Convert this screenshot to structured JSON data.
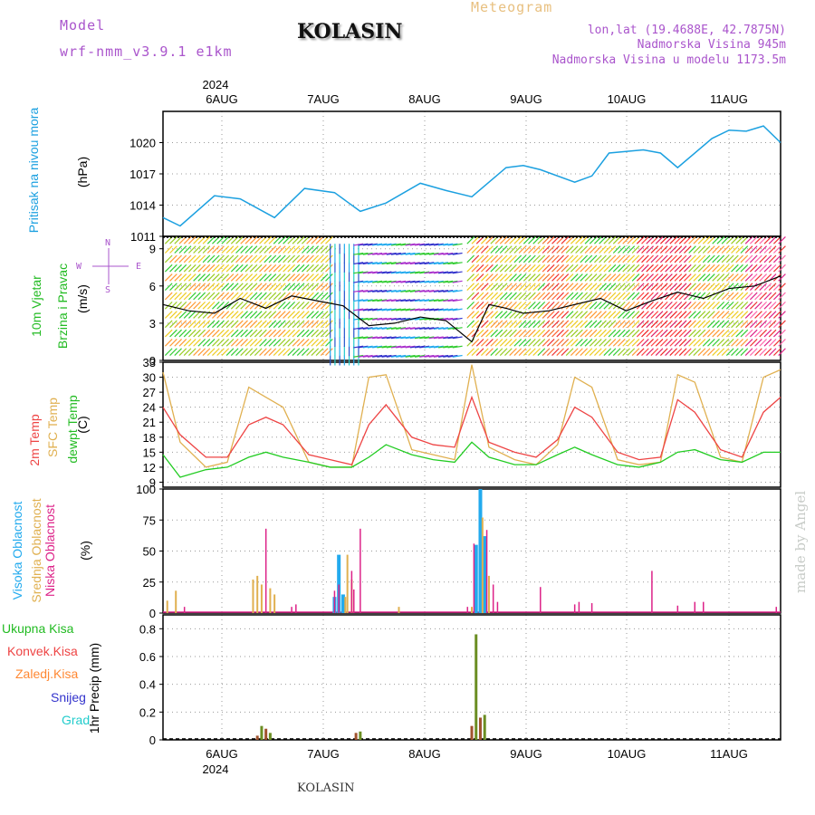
{
  "header": {
    "model_label": "Model",
    "model_name": "wrf-nmm_v3.9.1 e1km",
    "station": "KOLASIN",
    "meteogram": "Meteogram",
    "coords": "lon,lat (19.4688E, 42.7875N)",
    "altitude": "Nadmorska Visina 945m",
    "model_altitude": "Nadmorska Visina u modelu 1173.5m"
  },
  "colors": {
    "pressure": "#1ba0e0",
    "wind_label": "#22bb22",
    "temp": "#ee4444",
    "sfc_temp": "#e0b050",
    "dewpt": "#22cc22",
    "cloud_high": "#22aaee",
    "cloud_mid": "#e0b050",
    "cloud_low": "#dd2288",
    "precip": "#228822",
    "conv": "#ee4444",
    "frozen": "#ff8833",
    "snow": "#3333cc",
    "grad": "#22cccc",
    "model": "#aa55cc",
    "meteogram": "#e8c080"
  },
  "xaxis": {
    "year": "2024",
    "days": [
      "6AUG",
      "7AUG",
      "8AUG",
      "9AUG",
      "10AUG",
      "11AUG"
    ],
    "bottom_label": "KOLASIN",
    "watermark": "made by Angel"
  },
  "panels": {
    "pressure": {
      "label": "Pritisak na nivou mora",
      "unit": "(hPa)",
      "ticks": [
        "1020",
        "1017",
        "1014",
        "1011"
      ]
    },
    "wind": {
      "label1": "10m Vjetar",
      "label2": "Brzina i Pravac",
      "unit": "(m/s)",
      "ticks": [
        "9",
        "6",
        "3",
        "0"
      ],
      "compass_n": "N",
      "compass_w": "W",
      "compass_e": "E",
      "compass_s": "S"
    },
    "temp": {
      "label1": "2m Temp",
      "label2": "SFC Temp",
      "label3": "dewpt Temp",
      "unit": "(C)",
      "ticks": [
        "33",
        "30",
        "27",
        "24",
        "21",
        "18",
        "15",
        "12",
        "9"
      ]
    },
    "cloud": {
      "label1": "Visoka Oblacnost",
      "label2": "Srednja Oblacnost",
      "label3": "Niska Oblacnost",
      "unit": "(%)",
      "ticks": [
        "100",
        "75",
        "50",
        "25",
        "0"
      ]
    },
    "precip": {
      "unit": "1hr Precip (mm)",
      "ticks": [
        "0.8",
        "0.6",
        "0.4",
        "0.2",
        "0"
      ],
      "legend": [
        "Ukupna Kisa",
        "Konvek.Kisa",
        "Zaledj.Kisa",
        "Snijeg",
        "Grad"
      ]
    }
  },
  "chart_data": [
    {
      "type": "line",
      "title": "Pritisak na nivou mora",
      "ylabel": "(hPa)",
      "x_range": [
        0,
        144
      ],
      "ylim": [
        1011,
        1023
      ],
      "x": [
        0,
        4,
        12,
        18,
        26,
        33,
        40,
        46,
        52,
        60,
        66,
        72,
        80,
        84,
        88,
        96,
        100,
        104,
        112,
        116,
        120,
        128,
        132,
        136,
        140,
        144
      ],
      "values": [
        1012.8,
        1012.0,
        1014.9,
        1014.6,
        1012.8,
        1015.6,
        1015.2,
        1013.4,
        1014.2,
        1016.1,
        1015.4,
        1014.8,
        1017.6,
        1017.8,
        1017.4,
        1016.2,
        1016.8,
        1019.0,
        1019.3,
        1019.0,
        1017.6,
        1020.4,
        1021.2,
        1021.1,
        1021.6,
        1020.0
      ]
    },
    {
      "type": "line",
      "title": "10m Vjetar Brzina i Pravac",
      "ylabel": "(m/s)",
      "x_range": [
        0,
        144
      ],
      "ylim": [
        0,
        10
      ],
      "x": [
        0,
        6,
        12,
        18,
        24,
        30,
        36,
        42,
        48,
        54,
        60,
        66,
        72,
        76,
        80,
        84,
        90,
        96,
        102,
        108,
        114,
        120,
        126,
        132,
        138,
        144
      ],
      "values": [
        4.5,
        4.0,
        3.8,
        5.0,
        4.2,
        5.2,
        4.8,
        4.4,
        2.8,
        3.0,
        3.5,
        3.2,
        1.5,
        4.5,
        4.2,
        3.8,
        4.0,
        4.5,
        5.0,
        4.0,
        4.8,
        5.5,
        5.0,
        5.8,
        6.0,
        6.8
      ]
    },
    {
      "type": "line",
      "title": "2m Temp / SFC Temp / dewpt Temp",
      "ylabel": "(C)",
      "x_range": [
        0,
        144
      ],
      "ylim": [
        8,
        33
      ],
      "x": [
        0,
        4,
        10,
        15,
        20,
        24,
        28,
        34,
        39,
        44,
        48,
        52,
        58,
        63,
        68,
        72,
        76,
        82,
        87,
        92,
        96,
        100,
        106,
        111,
        116,
        120,
        124,
        130,
        135,
        140,
        144
      ],
      "series": [
        {
          "name": "2m Temp",
          "values": [
            24.0,
            18.5,
            14.0,
            14.0,
            20.5,
            22.0,
            20.5,
            14.5,
            13.5,
            12.5,
            20.5,
            24.5,
            18.0,
            16.5,
            16.0,
            26.0,
            17.0,
            15.0,
            14.0,
            17.5,
            24.0,
            22.0,
            15.0,
            13.5,
            14.0,
            25.5,
            23.0,
            15.5,
            14.0,
            23.0,
            26.0
          ]
        },
        {
          "name": "SFC Temp",
          "values": [
            31.0,
            17.0,
            12.0,
            13.0,
            28.0,
            26.0,
            24.0,
            13.0,
            12.0,
            12.0,
            30.0,
            30.5,
            15.5,
            14.5,
            13.5,
            32.5,
            16.0,
            13.5,
            12.5,
            16.5,
            30.0,
            28.0,
            13.5,
            12.5,
            13.0,
            30.5,
            29.0,
            14.0,
            13.0,
            30.0,
            31.5
          ]
        },
        {
          "name": "dewpt Temp",
          "values": [
            14.5,
            10.0,
            11.5,
            12.0,
            14.0,
            15.0,
            14.0,
            13.0,
            12.0,
            12.0,
            14.0,
            16.5,
            14.5,
            13.5,
            13.0,
            17.0,
            14.0,
            12.5,
            12.5,
            14.5,
            16.0,
            14.5,
            12.5,
            12.0,
            13.0,
            15.0,
            15.5,
            13.5,
            13.0,
            15.0,
            15.0
          ]
        }
      ]
    },
    {
      "type": "bar",
      "title": "Visoka / Srednja / Niska Oblacnost",
      "ylabel": "(%)",
      "x_range": [
        0,
        144
      ],
      "ylim": [
        0,
        100
      ],
      "series": [
        {
          "name": "Visoka Oblacnost",
          "x": [
            40,
            41,
            42,
            73,
            74,
            75
          ],
          "values": [
            13,
            47,
            15,
            55,
            100,
            62
          ]
        },
        {
          "name": "Srednja Oblacnost",
          "x": [
            1,
            3,
            21,
            22,
            23,
            25,
            26,
            42.5,
            43,
            44,
            55,
            72,
            74.5,
            76
          ],
          "values": [
            10,
            18,
            27,
            30,
            23,
            20,
            15,
            13,
            47,
            27,
            5,
            5,
            77,
            30
          ]
        },
        {
          "name": "Niska Oblacnost",
          "x": [
            5,
            24,
            30,
            31,
            40,
            41,
            44,
            44.5,
            46,
            71,
            72.5,
            75.5,
            77,
            78,
            88,
            96,
            97,
            100,
            114,
            120,
            124,
            126,
            143
          ],
          "values": [
            5,
            68,
            5,
            7,
            18,
            23,
            34,
            19,
            68,
            5,
            56,
            67,
            23,
            9,
            21,
            7,
            9,
            8,
            34,
            6,
            9,
            9,
            5
          ]
        }
      ]
    },
    {
      "type": "bar",
      "title": "1hr Precip",
      "ylabel": "1hr Precip (mm)",
      "x_range": [
        0,
        144
      ],
      "ylim": [
        0,
        0.9
      ],
      "series": [
        {
          "name": "Ukupna Kisa",
          "x": [
            22,
            23,
            24,
            25,
            45,
            46,
            72,
            73,
            74,
            75
          ],
          "values": [
            0.03,
            0.1,
            0.08,
            0.05,
            0.05,
            0.06,
            0.1,
            0.76,
            0.16,
            0.18
          ]
        }
      ]
    }
  ]
}
